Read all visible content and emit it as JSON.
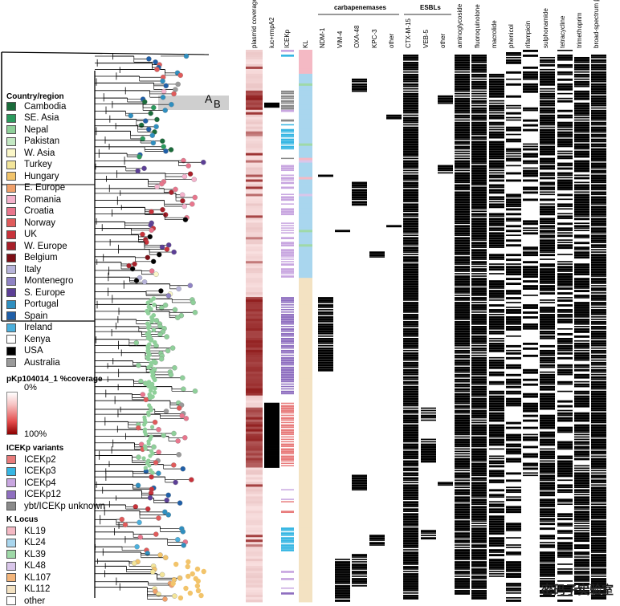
{
  "legend": {
    "country_title": "Country/region",
    "countries": [
      {
        "label": "Cambodia",
        "color": "#1a6b3a"
      },
      {
        "label": "SE. Asia",
        "color": "#2b9a5e"
      },
      {
        "label": "Nepal",
        "color": "#8fd09a"
      },
      {
        "label": "Pakistan",
        "color": "#c4e9c4"
      },
      {
        "label": "W. Asia",
        "color": "#fbf7c8"
      },
      {
        "label": "Turkey",
        "color": "#f3e59a"
      },
      {
        "label": "Hungary",
        "color": "#f2c46b"
      },
      {
        "label": "E. Europe",
        "color": "#f0a06a"
      },
      {
        "label": "Romania",
        "color": "#f4b2cc"
      },
      {
        "label": "Croatia",
        "color": "#e9768d"
      },
      {
        "label": "Norway",
        "color": "#e05b5b"
      },
      {
        "label": "UK",
        "color": "#c8323a"
      },
      {
        "label": "W. Europe",
        "color": "#a8202a"
      },
      {
        "label": "Belgium",
        "color": "#7d0f16"
      },
      {
        "label": "Italy",
        "color": "#b7b4da"
      },
      {
        "label": "Montenegro",
        "color": "#8f83c4"
      },
      {
        "label": "S. Europe",
        "color": "#5c3f96"
      },
      {
        "label": "Portugal",
        "color": "#2f8fc0"
      },
      {
        "label": "Spain",
        "color": "#1f5fa8"
      },
      {
        "label": "Ireland",
        "color": "#4cb0dd"
      },
      {
        "label": "Kenya",
        "color": "#ffffff"
      },
      {
        "label": "USA",
        "color": "#000000"
      },
      {
        "label": "Australia",
        "color": "#9a9a9a"
      }
    ],
    "coverage_title": "pKp104014_1 %coverage",
    "coverage_low": "0%",
    "coverage_high": "100%",
    "ice_title": "ICEKp variants",
    "ice": [
      {
        "label": "ICEKp2",
        "color": "#e87b7b"
      },
      {
        "label": "ICEKp3",
        "color": "#36b6e3"
      },
      {
        "label": "ICEKp4",
        "color": "#c8a6e0"
      },
      {
        "label": "ICEKp12",
        "color": "#8f6fc0"
      },
      {
        "label": "ybt/ICEKp unknown",
        "color": "#8a8a8a"
      }
    ],
    "k_title": "K Locus",
    "klocus": [
      {
        "label": "KL19",
        "color": "#f4b9c4"
      },
      {
        "label": "KL24",
        "color": "#a9d6ee"
      },
      {
        "label": "KL39",
        "color": "#9fd9a8"
      },
      {
        "label": "KL48",
        "color": "#d9c6ea"
      },
      {
        "label": "KL107",
        "color": "#f3b57a"
      },
      {
        "label": "KL112",
        "color": "#f3e2c2"
      },
      {
        "label": "other",
        "color": "#ffffff"
      }
    ]
  },
  "tree_labels": {
    "a": "A",
    "b": "B"
  },
  "groups": {
    "carbapenemases": "carbapenemases",
    "esbls": "ESBLs"
  },
  "columns": {
    "plasmid_coverage": "plasmid coverage",
    "iuc": "iuc+rmpA2",
    "icekp": "ICEKp",
    "kl": "KL",
    "ndm": "NDM-1",
    "vim": "VIM-4",
    "oxa": "OXA-48",
    "kpc": "KPC-3",
    "carb_other": "other",
    "ctx": "CTX-M-15",
    "veb": "VEB-5",
    "esbl_other": "other",
    "amino": "aminoglycoside",
    "fluoro": "fluoroquinolone",
    "macrolide": "macrolide",
    "phenicol": "phenicol",
    "rifampicin": "rifampicin",
    "sulph": "sulphonamide",
    "tetra": "tetracycline",
    "trimeth": "trimethoprim",
    "broad": "broad-spectrum β-lactamase"
  },
  "watermark": "密码子实验室"
}
